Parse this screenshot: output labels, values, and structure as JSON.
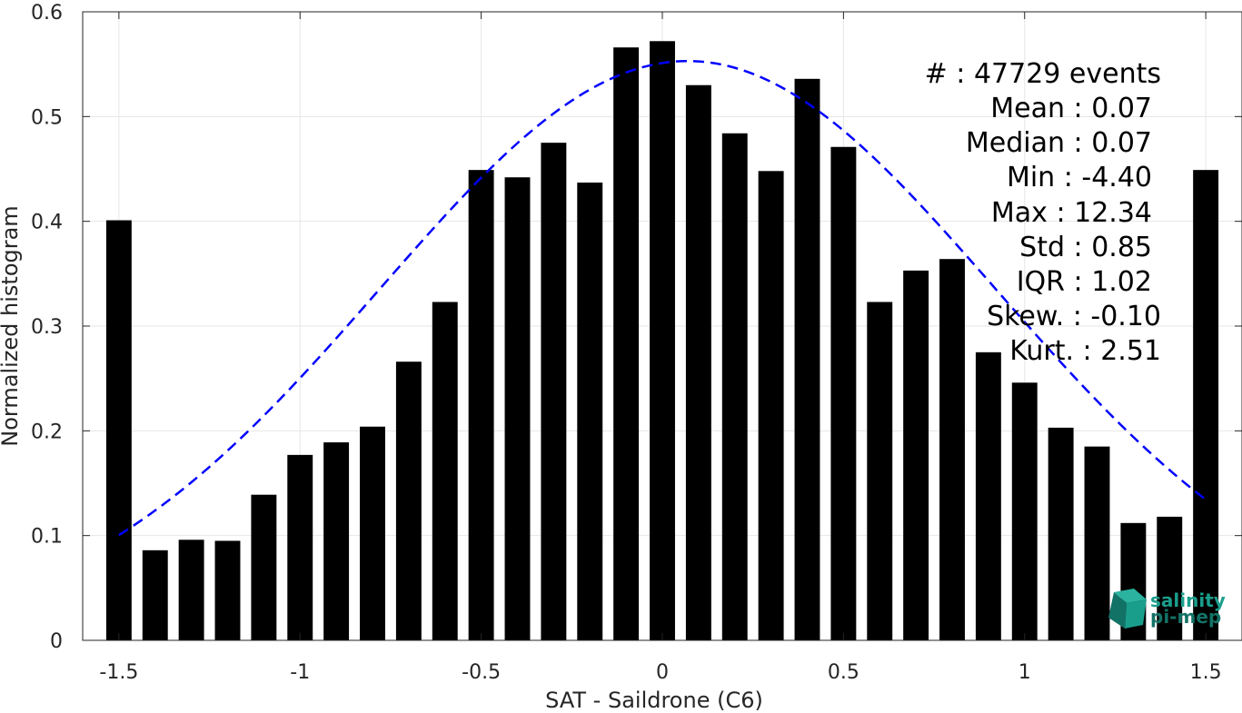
{
  "chart_data": {
    "type": "bar",
    "title": "",
    "xlabel": "SAT - Saildrone (C6)",
    "ylabel": "Normalized histogram",
    "xlim": [
      -1.6,
      1.6
    ],
    "ylim": [
      0,
      0.6
    ],
    "x_ticks": [
      -1.5,
      -1,
      -0.5,
      0,
      0.5,
      1,
      1.5
    ],
    "x_tick_labels": [
      "-1.5",
      "-1",
      "-0.5",
      "0",
      "0.5",
      "1",
      "1.5"
    ],
    "y_ticks": [
      0,
      0.1,
      0.2,
      0.3,
      0.4,
      0.5,
      0.6
    ],
    "y_tick_labels": [
      "0",
      "0.1",
      "0.2",
      "0.3",
      "0.4",
      "0.5",
      "0.6"
    ],
    "grid": true,
    "bar_color": "#000000",
    "bar_width": 0.07,
    "x": [
      -1.5,
      -1.4,
      -1.3,
      -1.2,
      -1.1,
      -1.0,
      -0.9,
      -0.8,
      -0.7,
      -0.6,
      -0.5,
      -0.4,
      -0.3,
      -0.2,
      -0.1,
      0.0,
      0.1,
      0.2,
      0.3,
      0.4,
      0.5,
      0.6,
      0.7,
      0.8,
      0.9,
      1.0,
      1.1,
      1.2,
      1.3,
      1.4,
      1.5
    ],
    "values": [
      0.401,
      0.086,
      0.096,
      0.095,
      0.139,
      0.177,
      0.189,
      0.204,
      0.266,
      0.323,
      0.449,
      0.442,
      0.475,
      0.437,
      0.566,
      0.572,
      0.53,
      0.484,
      0.448,
      0.536,
      0.471,
      0.323,
      0.353,
      0.364,
      0.275,
      0.246,
      0.203,
      0.185,
      0.112,
      0.118,
      0.449
    ],
    "fit_curve": {
      "style": "dashed",
      "color": "#0000ff",
      "distribution": "normal",
      "mean": 0.07,
      "std": 0.85,
      "peak": 0.553,
      "x_range": [
        -1.5,
        1.5
      ]
    },
    "stats_box": {
      "events": "#  : 47729 events",
      "mean": "Mean : 0.07",
      "median": "Median : 0.07",
      "min": "Min : -4.40",
      "max": "Max : 12.34",
      "std": "Std : 0.85",
      "iqr": "IQR : 1.02",
      "skew": "Skew. : -0.10",
      "kurt": "Kurt. : 2.51"
    },
    "logo": {
      "line1": "salinity",
      "line2": "pi-mep",
      "color": "#1a9e8c"
    }
  }
}
